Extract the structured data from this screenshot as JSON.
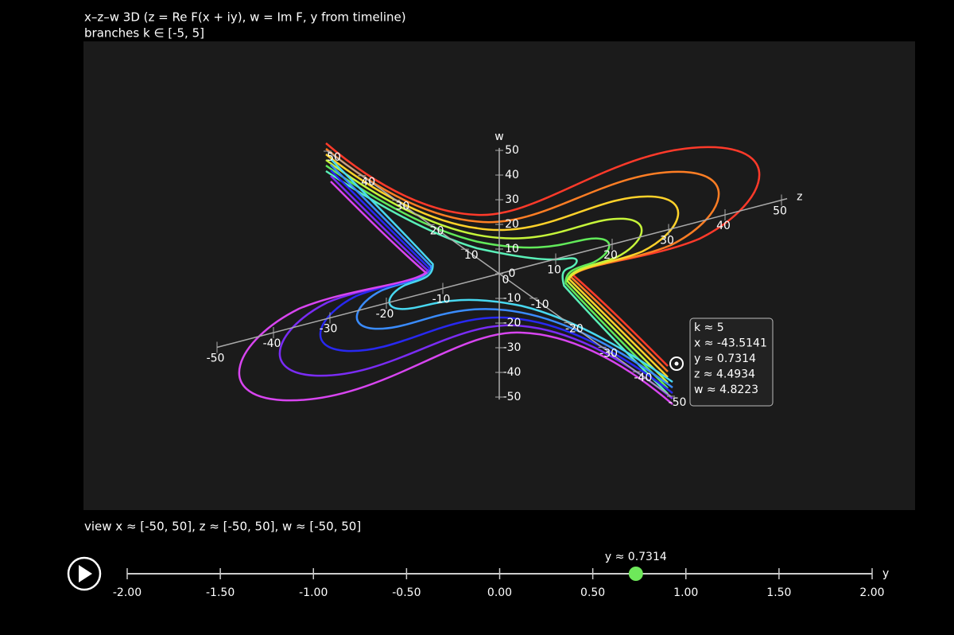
{
  "header": {
    "title": "x–z–w 3D  (z = Re F(x + iy),  w = Im F,  y from timeline)",
    "subtitle": "branches k ∈ [-5, 5]"
  },
  "plot": {
    "z_axis": {
      "label": "z",
      "ticks": [
        -50,
        -40,
        -30,
        -20,
        -10,
        10,
        20,
        30,
        40,
        50
      ]
    },
    "x_axis": {
      "ticks": [
        50,
        40,
        30,
        20,
        10,
        0,
        -10,
        -20,
        -30,
        -40,
        -50
      ]
    },
    "w_axis": {
      "label": "w",
      "ticks": [
        50,
        40,
        30,
        20,
        10,
        0,
        -10,
        -20,
        -30,
        -40,
        -50
      ]
    },
    "tooltip": {
      "lines": [
        "k ≈ 5",
        "x ≈ -43.5141",
        "y ≈ 0.7314",
        "z ≈ 4.4934",
        "w ≈ 4.8223"
      ]
    }
  },
  "view": "view x ≈ [-50, 50], z ≈ [-50, 50], w ≈ [-50, 50]",
  "slider": {
    "label": "y",
    "value": 0.7314,
    "value_label": "y ≈ 0.7314",
    "range": [
      -2,
      2
    ],
    "ticks": [
      {
        "value": -2,
        "label": "-2.00"
      },
      {
        "value": -1.5,
        "label": "-1.50"
      },
      {
        "value": -1,
        "label": "-1.00"
      },
      {
        "value": -0.5,
        "label": "-0.50"
      },
      {
        "value": 0,
        "label": "0.00"
      },
      {
        "value": 0.5,
        "label": "0.50"
      },
      {
        "value": 1,
        "label": "1.00"
      },
      {
        "value": 1.5,
        "label": "1.50"
      },
      {
        "value": 2,
        "label": "2.00"
      }
    ]
  }
}
